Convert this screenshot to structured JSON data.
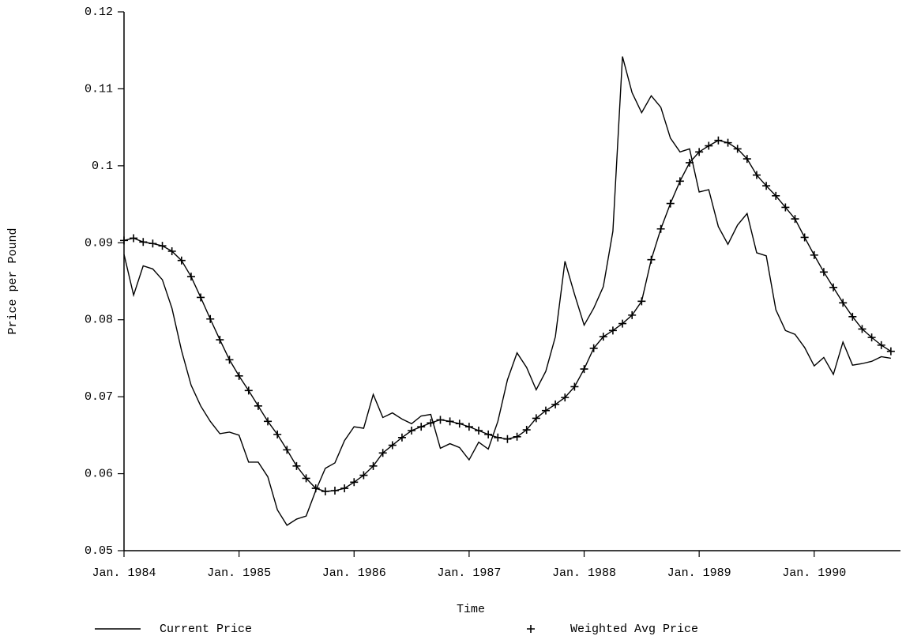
{
  "chart_data": {
    "type": "line",
    "xlabel": "Time",
    "ylabel": "Price per Pound",
    "x": [
      0,
      1,
      2,
      3,
      4,
      5,
      6,
      7,
      8,
      9,
      10,
      11,
      12,
      13,
      14,
      15,
      16,
      17,
      18,
      19,
      20,
      21,
      22,
      23,
      24,
      25,
      26,
      27,
      28,
      29,
      30,
      31,
      32,
      33,
      34,
      35,
      36,
      37,
      38,
      39,
      40,
      41,
      42,
      43,
      44,
      45,
      46,
      47,
      48,
      49,
      50,
      51,
      52,
      53,
      54,
      55,
      56,
      57,
      58,
      59,
      60,
      61,
      62,
      63,
      64,
      65,
      66,
      67,
      68,
      69,
      70,
      71,
      72,
      73,
      74,
      75,
      76,
      77,
      78,
      79,
      80
    ],
    "series": [
      {
        "name": "Current Price",
        "color": "#000000",
        "marker": "none",
        "values": [
          0.0885,
          0.0832,
          0.087,
          0.0866,
          0.0852,
          0.0815,
          0.076,
          0.0715,
          0.0688,
          0.0668,
          0.0652,
          0.0654,
          0.065,
          0.0615,
          0.0615,
          0.0596,
          0.0553,
          0.0533,
          0.0541,
          0.0545,
          0.0578,
          0.0607,
          0.0614,
          0.0643,
          0.0661,
          0.0659,
          0.0703,
          0.0673,
          0.0679,
          0.0671,
          0.0665,
          0.0675,
          0.0677,
          0.0633,
          0.0639,
          0.0634,
          0.0618,
          0.0641,
          0.0632,
          0.0668,
          0.0722,
          0.0757,
          0.0738,
          0.0709,
          0.0733,
          0.0778,
          0.0876,
          0.0833,
          0.0793,
          0.0815,
          0.0843,
          0.0915,
          0.1142,
          0.1095,
          0.1069,
          0.1091,
          0.1076,
          0.1036,
          0.1018,
          0.1022,
          0.0966,
          0.0969,
          0.0921,
          0.0898,
          0.0923,
          0.0938,
          0.0887,
          0.0883,
          0.0813,
          0.0786,
          0.0781,
          0.0764,
          0.074,
          0.0751,
          0.0729,
          0.0771,
          0.0741,
          0.0743,
          0.0746,
          0.0752,
          0.075
        ]
      },
      {
        "name": "Weighted Avg Price",
        "color": "#000000",
        "marker": "plus",
        "values": [
          0.0903,
          0.0906,
          0.0901,
          0.0899,
          0.0896,
          0.0889,
          0.0877,
          0.0856,
          0.0829,
          0.0801,
          0.0774,
          0.0748,
          0.0727,
          0.0708,
          0.0688,
          0.0668,
          0.0651,
          0.0631,
          0.061,
          0.0594,
          0.0581,
          0.0577,
          0.0578,
          0.0581,
          0.0589,
          0.0598,
          0.061,
          0.0627,
          0.0637,
          0.0647,
          0.0656,
          0.0661,
          0.0666,
          0.067,
          0.0668,
          0.0665,
          0.0661,
          0.0656,
          0.0651,
          0.0647,
          0.0645,
          0.0648,
          0.0657,
          0.0672,
          0.0682,
          0.069,
          0.0699,
          0.0713,
          0.0736,
          0.0763,
          0.0778,
          0.0786,
          0.0795,
          0.0806,
          0.0824,
          0.0878,
          0.0918,
          0.0951,
          0.098,
          0.1004,
          0.1018,
          0.1026,
          0.1033,
          0.103,
          0.1022,
          0.1009,
          0.0988,
          0.0974,
          0.0961,
          0.0946,
          0.0931,
          0.0907,
          0.0884,
          0.0862,
          0.0842,
          0.0822,
          0.0804,
          0.0788,
          0.0777,
          0.0767,
          0.0759
        ]
      }
    ],
    "xlim": [
      0,
      81
    ],
    "xticks": [
      {
        "value": 0,
        "label": "Jan. 1984"
      },
      {
        "value": 12,
        "label": "Jan. 1985"
      },
      {
        "value": 24,
        "label": "Jan. 1986"
      },
      {
        "value": 36,
        "label": "Jan. 1987"
      },
      {
        "value": 48,
        "label": "Jan. 1988"
      },
      {
        "value": 60,
        "label": "Jan. 1989"
      },
      {
        "value": 72,
        "label": "Jan. 1990"
      }
    ],
    "ylim": [
      0.05,
      0.12
    ],
    "yticks": [
      0.05,
      0.06,
      0.07,
      0.08,
      0.09,
      0.1,
      0.11,
      0.12
    ],
    "grid": false,
    "legend": "bottom"
  }
}
